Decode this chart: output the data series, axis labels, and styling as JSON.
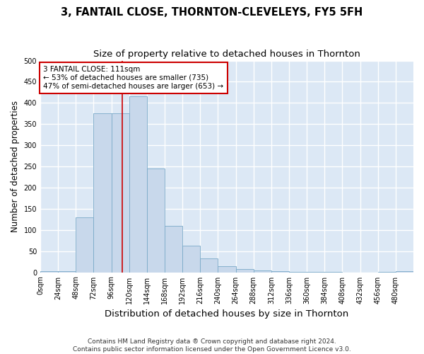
{
  "title": "3, FANTAIL CLOSE, THORNTON-CLEVELEYS, FY5 5FH",
  "subtitle": "Size of property relative to detached houses in Thornton",
  "xlabel": "Distribution of detached houses by size in Thornton",
  "ylabel": "Number of detached properties",
  "bar_color": "#c8d8eb",
  "bar_edge_color": "#7aaac8",
  "background_color": "#dce8f5",
  "grid_color": "#ffffff",
  "bin_edges": [
    0,
    24,
    48,
    72,
    96,
    120,
    144,
    168,
    192,
    216,
    240,
    264,
    288,
    312,
    336,
    360,
    384,
    408,
    432,
    456,
    480,
    504
  ],
  "bar_heights": [
    3,
    2,
    130,
    375,
    375,
    415,
    245,
    110,
    63,
    33,
    15,
    8,
    5,
    2,
    1,
    1,
    1,
    0,
    0,
    1,
    3
  ],
  "tick_labels": [
    "0sqm",
    "24sqm",
    "48sqm",
    "72sqm",
    "96sqm",
    "120sqm",
    "144sqm",
    "168sqm",
    "192sqm",
    "216sqm",
    "240sqm",
    "264sqm",
    "288sqm",
    "312sqm",
    "336sqm",
    "360sqm",
    "384sqm",
    "408sqm",
    "432sqm",
    "456sqm",
    "480sqm"
  ],
  "vline_x": 111,
  "vline_color": "#cc0000",
  "annotation_text": "3 FANTAIL CLOSE: 111sqm\n← 53% of detached houses are smaller (735)\n47% of semi-detached houses are larger (653) →",
  "annotation_box_color": "#ffffff",
  "annotation_box_edge": "#cc0000",
  "ylim": [
    0,
    500
  ],
  "yticks": [
    0,
    50,
    100,
    150,
    200,
    250,
    300,
    350,
    400,
    450,
    500
  ],
  "footnote": "Contains HM Land Registry data ® Crown copyright and database right 2024.\nContains public sector information licensed under the Open Government Licence v3.0.",
  "title_fontsize": 10.5,
  "subtitle_fontsize": 9.5,
  "xlabel_fontsize": 9.5,
  "ylabel_fontsize": 8.5,
  "tick_fontsize": 7,
  "annotation_fontsize": 7.5,
  "footnote_fontsize": 6.5
}
